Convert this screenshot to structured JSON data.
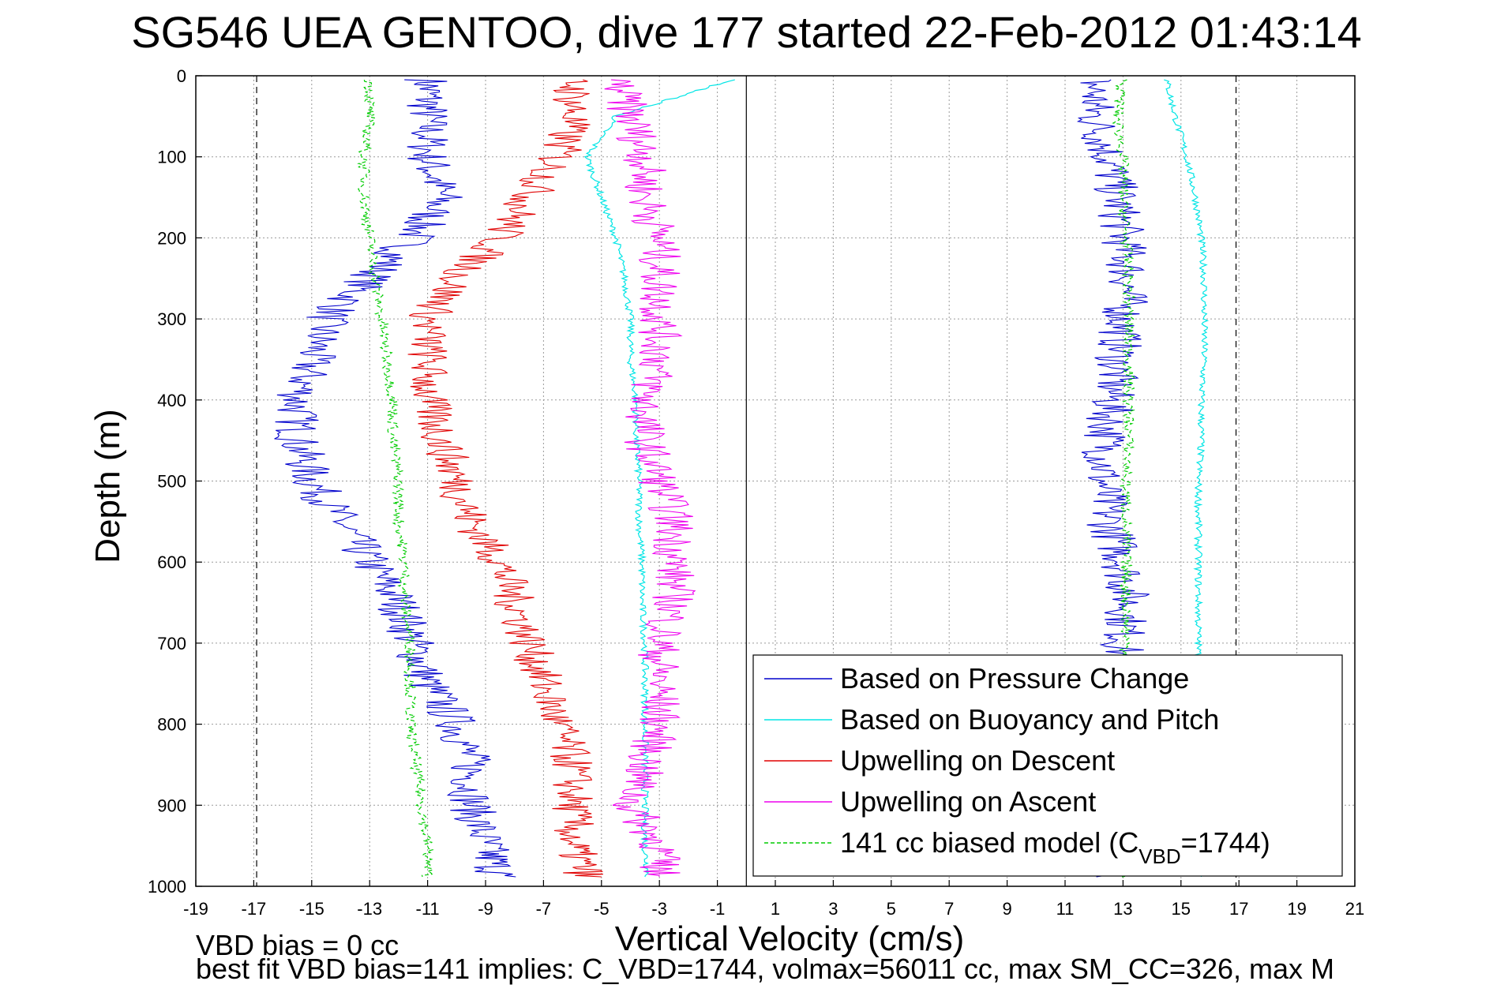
{
  "title": "SG546 UEA GENTOO, dive 177 started 22-Feb-2012 01:43:14",
  "notes": {
    "vbd_bias": "VBD bias = 0 cc",
    "best_fit": "best fit VBD bias=141 implies: C_VBD=1744, volmax=56011 cc, max SM_CC=326, max M"
  },
  "colors": {
    "pressure": "#0000cc",
    "buoyancy": "#00e5e5",
    "descent": "#e00000",
    "ascent": "#ee00ee",
    "model": "#00cc00"
  },
  "chart_data": {
    "type": "line",
    "xlabel": "Vertical Velocity (cm/s)",
    "ylabel": "Depth (m)",
    "xlim": [
      -19,
      21
    ],
    "ylim": [
      1000,
      0
    ],
    "xticks": [
      "-19",
      "-17",
      "-15",
      "-13",
      "-11",
      "-9",
      "-7",
      "-5",
      "-3",
      "-1",
      "1",
      "3",
      "5",
      "7",
      "9",
      "11",
      "13",
      "15",
      "17",
      "19",
      "21"
    ],
    "yticks": [
      "0",
      "100",
      "200",
      "300",
      "400",
      "500",
      "600",
      "700",
      "800",
      "900",
      "1000"
    ],
    "grid": true,
    "legend_position": "bottom-right",
    "depth": [
      5,
      50,
      100,
      150,
      200,
      250,
      300,
      350,
      400,
      450,
      500,
      550,
      600,
      650,
      700,
      750,
      800,
      850,
      900,
      950,
      990
    ],
    "reference_lines": [
      {
        "x": -16.9,
        "style": "dashed"
      },
      {
        "x": 16.9,
        "style": "dashed"
      },
      {
        "x": 0,
        "style": "solid"
      }
    ],
    "series": [
      {
        "name": "Based on Pressure Change",
        "key": "pressure",
        "style": "solid",
        "values": [
          [
            -11,
            -11,
            -11,
            -10.5,
            -11.5,
            -13,
            -14.5,
            -15,
            -15.5,
            -15.5,
            -15,
            -14,
            -13,
            -12,
            -11.5,
            -11,
            -10,
            -9.5,
            -9.5,
            -9,
            -8.5
          ],
          [
            12,
            12,
            12.5,
            12.8,
            13,
            13.2,
            13,
            12.8,
            12.6,
            12.4,
            12.3,
            12.5,
            13,
            13.2,
            13,
            12.8,
            12.8,
            12.8,
            12.8,
            12.8,
            12.8
          ]
        ]
      },
      {
        "name": "Based on Buoyancy and Pitch",
        "key": "buoyancy",
        "style": "solid",
        "values": [
          [
            -0.5,
            -4.5,
            -5.5,
            -5,
            -4.5,
            -4.2,
            -4,
            -4,
            -3.8,
            -3.8,
            -3.7,
            -3.7,
            -3.6,
            -3.6,
            -3.5,
            -3.5,
            -3.5,
            -3.5,
            -3.5,
            -3.5,
            -3.4
          ],
          [
            14.5,
            14.8,
            15.2,
            15.5,
            15.7,
            15.8,
            15.8,
            15.8,
            15.7,
            15.7,
            15.6,
            15.6,
            15.6,
            15.6,
            15.6,
            15.6,
            15.6,
            15.6,
            15.6,
            15.6,
            15.6
          ]
        ]
      },
      {
        "name": "Upwelling on Descent",
        "key": "descent",
        "style": "solid",
        "values": [
          [
            -6,
            -6,
            -6.5,
            -7.5,
            -8.5,
            -10,
            -11,
            -11,
            -11,
            -10.5,
            -10,
            -9.5,
            -8.5,
            -8,
            -7.5,
            -7,
            -6.5,
            -6,
            -6,
            -6,
            -5.5
          ]
        ]
      },
      {
        "name": "Upwelling on Ascent",
        "key": "ascent",
        "style": "solid",
        "values": [
          [
            -4.5,
            -4,
            -3.5,
            -3.5,
            -3,
            -3,
            -3,
            -3,
            -3.5,
            -3.5,
            -3,
            -2.5,
            -2.5,
            -2.5,
            -3,
            -3,
            -3,
            -3.5,
            -4,
            -3,
            -3
          ]
        ]
      },
      {
        "name": "141 cc biased model (C_VBD=1744)",
        "key": "model",
        "style": "dashed",
        "values": [
          [
            -13,
            -13,
            -13.2,
            -13.2,
            -13,
            -12.8,
            -12.6,
            -12.4,
            -12.2,
            -12.2,
            -12,
            -12,
            -11.8,
            -11.8,
            -11.6,
            -11.6,
            -11.6,
            -11.4,
            -11.2,
            -11,
            -11
          ],
          [
            13,
            12.8,
            13,
            13,
            13.1,
            13.2,
            13.2,
            13.2,
            13.2,
            13.2,
            13.1,
            13.1,
            13.1,
            13.1,
            13.1,
            13.1,
            13.1,
            13.1,
            13.1,
            13.1,
            13.1
          ]
        ]
      }
    ],
    "legend": {
      "items": [
        "Based on Pressure Change",
        "Based on Buoyancy and Pitch",
        "Upwelling on Descent",
        "Upwelling on Ascent",
        "141 cc biased model (C"
      ],
      "model_sub": "VBD",
      "model_suffix": "=1744)"
    }
  }
}
